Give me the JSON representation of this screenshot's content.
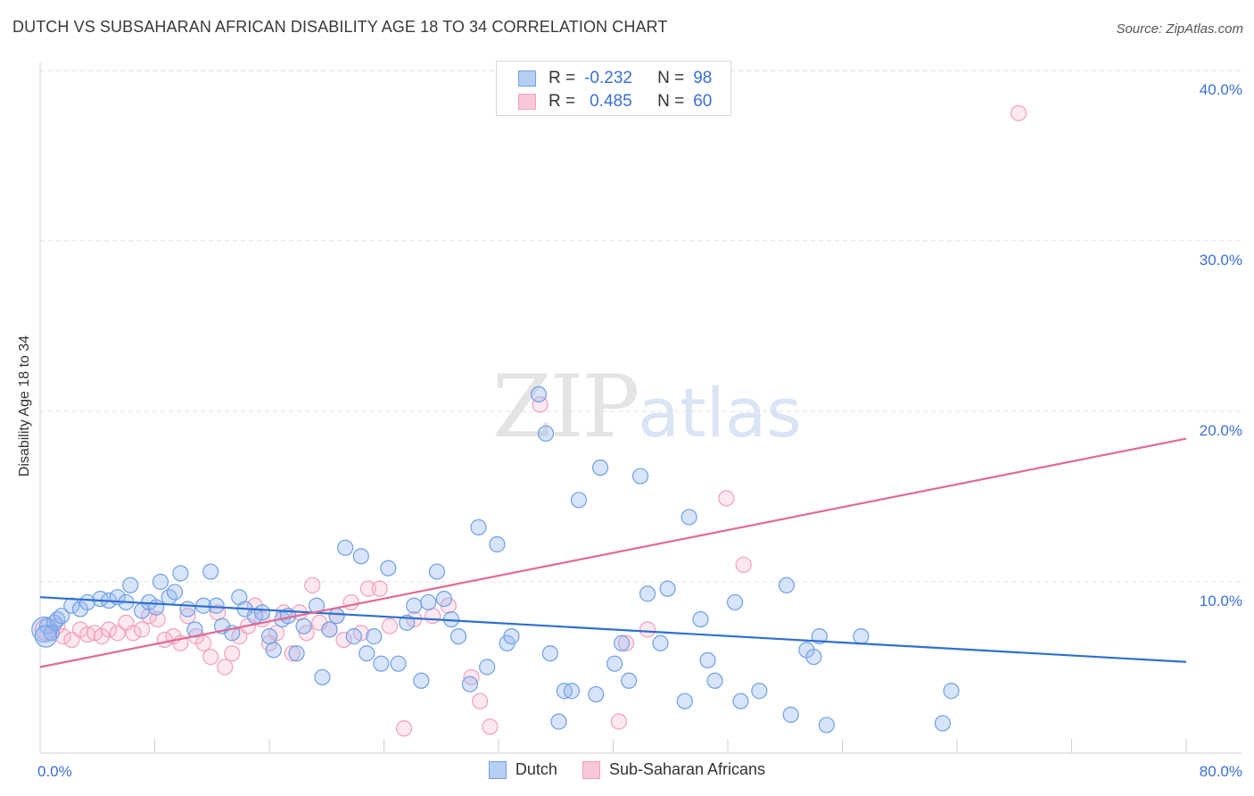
{
  "title": "DUTCH VS SUBSAHARAN AFRICAN DISABILITY AGE 18 TO 34 CORRELATION CHART",
  "source": "Source: ZipAtlas.com",
  "watermark": {
    "zip": "ZIP",
    "atlas": "atlas"
  },
  "legend": {
    "rows": [
      {
        "r_label": "R =",
        "r_value": "-0.232",
        "n_label": "N =",
        "n_value": "98"
      },
      {
        "r_label": "R =",
        "r_value": "0.485",
        "n_label": "N =",
        "n_value": "60"
      }
    ]
  },
  "colors": {
    "dutch": "#6fa0e6",
    "dutch_line": "#2e6fd0",
    "subsaharan": "#f2a0bb",
    "subsaharan_line": "#e06a94",
    "axis_label": "#3a6fd8"
  },
  "chart_data": {
    "type": "scatter",
    "title": "DUTCH VS SUBSAHARAN AFRICAN DISABILITY AGE 18 TO 34 CORRELATION CHART",
    "xlabel": "",
    "ylabel": "Disability Age 18 to 34",
    "xlim": [
      0,
      80
    ],
    "ylim": [
      0,
      42
    ],
    "x_tick_labels": [
      "0.0%",
      "80.0%"
    ],
    "y_ticks": [
      10,
      20,
      30,
      40
    ],
    "y_tick_labels": [
      "10.0%",
      "20.0%",
      "30.0%",
      "40.0%"
    ],
    "grid": "horizontal dashed",
    "legend_position": "bottom",
    "series": [
      {
        "name": "Dutch",
        "trend": {
          "x": [
            0,
            80
          ],
          "y": [
            9.1,
            5.3
          ]
        },
        "points": [
          [
            0.3,
            7.2
          ],
          [
            0.5,
            7.4
          ],
          [
            0.8,
            7.0
          ],
          [
            1.0,
            7.6
          ],
          [
            1.2,
            7.8
          ],
          [
            1.5,
            8.0
          ],
          [
            2.2,
            8.6
          ],
          [
            2.8,
            8.4
          ],
          [
            3.3,
            8.8
          ],
          [
            4.2,
            9.0
          ],
          [
            4.8,
            8.9
          ],
          [
            5.4,
            9.1
          ],
          [
            6.0,
            8.8
          ],
          [
            6.3,
            9.8
          ],
          [
            7.1,
            8.3
          ],
          [
            7.6,
            8.8
          ],
          [
            8.1,
            8.5
          ],
          [
            8.4,
            10.0
          ],
          [
            9.0,
            9.1
          ],
          [
            9.4,
            9.4
          ],
          [
            9.8,
            10.5
          ],
          [
            10.3,
            8.4
          ],
          [
            10.8,
            7.2
          ],
          [
            11.4,
            8.6
          ],
          [
            11.9,
            10.6
          ],
          [
            12.3,
            8.6
          ],
          [
            12.7,
            7.4
          ],
          [
            13.4,
            7.0
          ],
          [
            13.9,
            9.1
          ],
          [
            14.3,
            8.4
          ],
          [
            15.0,
            8.0
          ],
          [
            15.5,
            8.2
          ],
          [
            16.0,
            6.8
          ],
          [
            16.3,
            6.0
          ],
          [
            16.9,
            7.8
          ],
          [
            17.3,
            8.0
          ],
          [
            17.9,
            5.8
          ],
          [
            18.4,
            7.4
          ],
          [
            19.3,
            8.6
          ],
          [
            19.7,
            4.4
          ],
          [
            20.2,
            7.2
          ],
          [
            20.7,
            8.0
          ],
          [
            21.3,
            12.0
          ],
          [
            21.9,
            6.8
          ],
          [
            22.4,
            11.5
          ],
          [
            22.8,
            5.8
          ],
          [
            23.3,
            6.8
          ],
          [
            23.8,
            5.2
          ],
          [
            24.3,
            10.8
          ],
          [
            25.0,
            5.2
          ],
          [
            25.6,
            7.6
          ],
          [
            26.1,
            8.6
          ],
          [
            26.6,
            4.2
          ],
          [
            27.1,
            8.8
          ],
          [
            27.7,
            10.6
          ],
          [
            28.2,
            9.0
          ],
          [
            28.7,
            7.8
          ],
          [
            29.2,
            6.8
          ],
          [
            30.0,
            4.0
          ],
          [
            30.6,
            13.2
          ],
          [
            31.2,
            5.0
          ],
          [
            31.9,
            12.2
          ],
          [
            32.6,
            6.4
          ],
          [
            32.9,
            6.8
          ],
          [
            34.8,
            21.0
          ],
          [
            35.3,
            18.7
          ],
          [
            35.6,
            5.8
          ],
          [
            36.2,
            1.8
          ],
          [
            36.6,
            3.6
          ],
          [
            37.1,
            3.6
          ],
          [
            37.6,
            14.8
          ],
          [
            38.8,
            3.4
          ],
          [
            39.1,
            16.7
          ],
          [
            40.1,
            5.2
          ],
          [
            40.6,
            6.4
          ],
          [
            41.1,
            4.2
          ],
          [
            41.9,
            16.2
          ],
          [
            42.4,
            9.3
          ],
          [
            43.3,
            6.4
          ],
          [
            43.8,
            9.6
          ],
          [
            45.0,
            3.0
          ],
          [
            45.3,
            13.8
          ],
          [
            46.1,
            7.8
          ],
          [
            46.6,
            5.4
          ],
          [
            47.1,
            4.2
          ],
          [
            48.5,
            8.8
          ],
          [
            48.9,
            3.0
          ],
          [
            50.2,
            3.6
          ],
          [
            52.1,
            9.8
          ],
          [
            52.4,
            2.2
          ],
          [
            53.5,
            6.0
          ],
          [
            54.0,
            5.6
          ],
          [
            54.4,
            6.8
          ],
          [
            54.9,
            1.6
          ],
          [
            57.3,
            6.8
          ],
          [
            63.0,
            1.7
          ],
          [
            63.6,
            3.6
          ],
          [
            0.4,
            6.8
          ]
        ]
      },
      {
        "name": "Sub-Saharan Africans",
        "trend": {
          "x": [
            0,
            80
          ],
          "y": [
            5.0,
            18.4
          ]
        },
        "points": [
          [
            0.4,
            7.2
          ],
          [
            0.8,
            7.0
          ],
          [
            1.2,
            7.4
          ],
          [
            1.6,
            6.8
          ],
          [
            2.2,
            6.6
          ],
          [
            2.8,
            7.2
          ],
          [
            3.3,
            6.9
          ],
          [
            3.8,
            7.0
          ],
          [
            4.3,
            6.8
          ],
          [
            4.8,
            7.2
          ],
          [
            5.4,
            7.0
          ],
          [
            6.0,
            7.6
          ],
          [
            6.5,
            7.0
          ],
          [
            7.1,
            7.2
          ],
          [
            7.6,
            8.0
          ],
          [
            8.2,
            7.8
          ],
          [
            8.7,
            6.6
          ],
          [
            9.3,
            6.8
          ],
          [
            9.8,
            6.4
          ],
          [
            10.3,
            8.0
          ],
          [
            10.9,
            6.8
          ],
          [
            11.4,
            6.4
          ],
          [
            11.9,
            5.6
          ],
          [
            12.4,
            8.2
          ],
          [
            12.9,
            5.0
          ],
          [
            13.4,
            5.8
          ],
          [
            13.9,
            6.8
          ],
          [
            14.5,
            7.4
          ],
          [
            15.0,
            8.6
          ],
          [
            15.5,
            7.8
          ],
          [
            16.0,
            6.4
          ],
          [
            16.5,
            7.0
          ],
          [
            17.0,
            8.2
          ],
          [
            17.6,
            5.8
          ],
          [
            18.1,
            8.2
          ],
          [
            18.6,
            7.0
          ],
          [
            19.0,
            9.8
          ],
          [
            19.5,
            7.6
          ],
          [
            20.2,
            7.2
          ],
          [
            20.7,
            8.0
          ],
          [
            21.2,
            6.6
          ],
          [
            21.7,
            8.8
          ],
          [
            22.4,
            7.0
          ],
          [
            22.9,
            9.6
          ],
          [
            23.7,
            9.6
          ],
          [
            24.4,
            7.4
          ],
          [
            25.4,
            1.4
          ],
          [
            26.1,
            7.8
          ],
          [
            27.4,
            8.0
          ],
          [
            28.5,
            8.6
          ],
          [
            30.1,
            4.4
          ],
          [
            30.7,
            3.0
          ],
          [
            31.4,
            1.5
          ],
          [
            34.9,
            20.4
          ],
          [
            40.4,
            1.8
          ],
          [
            40.9,
            6.4
          ],
          [
            42.4,
            7.2
          ],
          [
            47.9,
            14.9
          ],
          [
            49.1,
            11.0
          ],
          [
            68.3,
            37.5
          ]
        ]
      }
    ]
  },
  "bottom_legend": [
    "Dutch",
    "Sub-Saharan Africans"
  ]
}
